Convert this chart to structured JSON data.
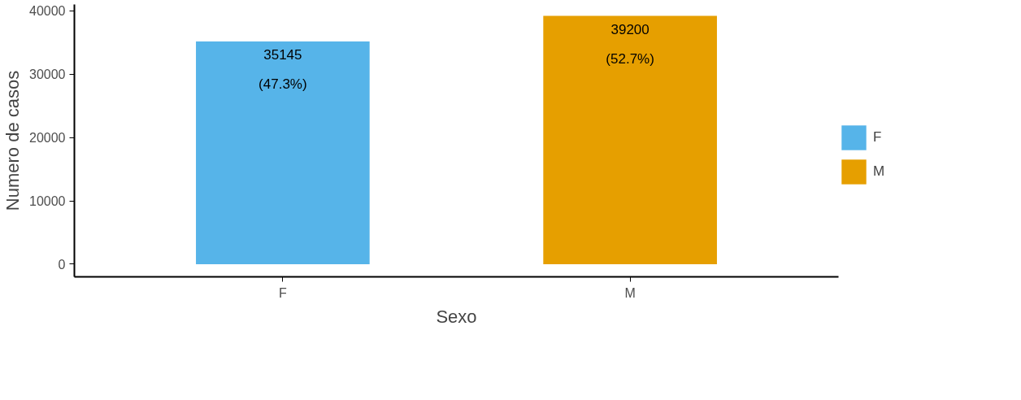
{
  "chart_data": {
    "type": "bar",
    "xlabel": "Sexo",
    "ylabel": "Numero de casos",
    "categories": [
      "F",
      "M"
    ],
    "stacked": true,
    "series": [
      {
        "name": "F",
        "color": "#56b4e9",
        "values": [
          35145,
          null
        ],
        "value_labels": [
          "35145\n(47.3%)",
          null
        ]
      },
      {
        "name": "M",
        "color": "#e69f00",
        "values": [
          null,
          39200
        ],
        "value_labels": [
          null,
          "39200\n(52.7%)"
        ]
      }
    ],
    "ylim": [
      -2000,
      41000
    ],
    "yticks": [
      0,
      10000,
      20000,
      30000,
      40000
    ],
    "grid": false,
    "legend": "right"
  }
}
